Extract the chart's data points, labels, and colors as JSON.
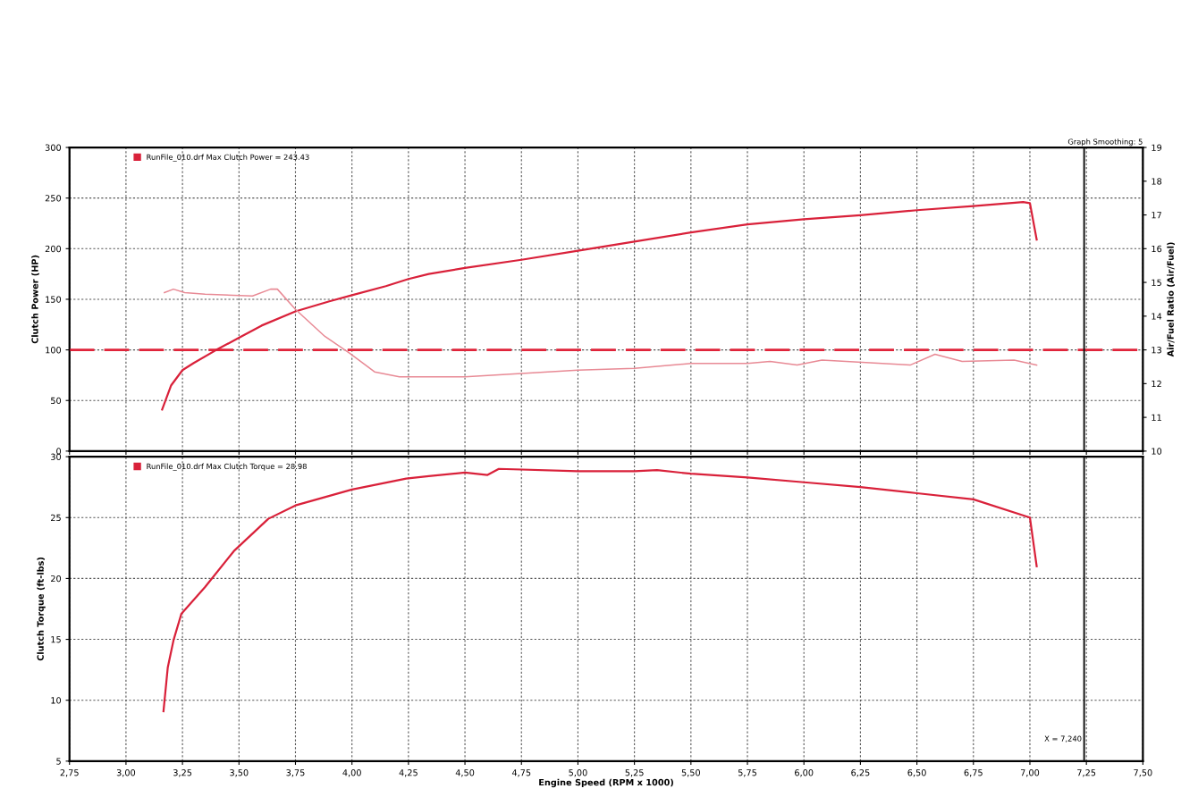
{
  "chart_data": [
    {
      "type": "line",
      "ylabel": "Clutch Power (HP)",
      "y2label": "Air/Fuel Ratio (Air/Fuel)",
      "annotations": [
        "Graph Smoothing: 5"
      ],
      "xlim": [
        2.75,
        7.5
      ],
      "xticks": [
        2.75,
        3.0,
        3.25,
        3.5,
        3.75,
        4.0,
        4.25,
        4.5,
        4.75,
        5.0,
        5.25,
        5.5,
        5.75,
        6.0,
        6.25,
        6.5,
        6.75,
        7.0,
        7.25,
        7.5
      ],
      "ylim": [
        0,
        300
      ],
      "yticks": [
        0,
        50,
        100,
        150,
        200,
        250,
        300
      ],
      "y2lim": [
        10,
        19
      ],
      "y2ticks": [
        10,
        11,
        12,
        13,
        14,
        15,
        16,
        17,
        18,
        19
      ],
      "tick_labels": "y",
      "grid": true,
      "legend": "top left",
      "ref_lines": [
        {
          "axis": "y",
          "value": 100,
          "color": "#e0243a",
          "line_style": "dashed"
        },
        {
          "axis": "x",
          "value": 7.24,
          "color": "#111111",
          "line_style": "solid"
        }
      ],
      "series": [
        {
          "name": "RunFile_010.drf Max Clutch Power = 243.43",
          "color": "#d9213a",
          "x": [
            3.16,
            3.2,
            3.25,
            3.3,
            3.4,
            3.5,
            3.6,
            3.75,
            3.9,
            4.0,
            4.15,
            4.25,
            4.34,
            4.5,
            4.75,
            5.0,
            5.25,
            5.5,
            5.75,
            6.0,
            6.25,
            6.5,
            6.75,
            6.97,
            7.0,
            7.03
          ],
          "values": [
            41,
            65,
            80,
            87,
            100,
            112,
            124,
            138,
            148,
            154,
            163,
            170,
            175,
            181,
            189,
            198,
            207,
            216,
            224,
            229,
            233,
            238,
            242,
            246,
            245,
            209
          ]
        },
        {
          "color": "#e88a95",
          "axis": "y2",
          "x": [
            3.17,
            3.21,
            3.26,
            3.35,
            3.56,
            3.64,
            3.67,
            3.75,
            3.88,
            3.99,
            4.1,
            4.21,
            4.34,
            4.5,
            4.75,
            5.0,
            5.25,
            5.5,
            5.75,
            5.85,
            5.97,
            6.08,
            6.47,
            6.58,
            6.7,
            6.93,
            7.03
          ],
          "values": [
            14.7,
            14.8,
            14.7,
            14.65,
            14.6,
            14.8,
            14.8,
            14.2,
            13.4,
            12.9,
            12.35,
            12.2,
            12.2,
            12.2,
            12.3,
            12.4,
            12.45,
            12.6,
            12.6,
            12.66,
            12.55,
            12.7,
            12.55,
            12.87,
            12.66,
            12.7,
            12.55
          ]
        }
      ]
    },
    {
      "type": "line",
      "xlabel": "Engine Speed (RPM x 1000)",
      "ylabel": "Clutch Torque (ft-lbs)",
      "xlim": [
        2.75,
        7.5
      ],
      "xticks": [
        {
          "value": 2.75,
          "label": "2,75"
        },
        {
          "value": 3.0,
          "label": "3,00"
        },
        {
          "value": 3.25,
          "label": "3,25"
        },
        {
          "value": 3.5,
          "label": "3,50"
        },
        {
          "value": 3.75,
          "label": "3,75"
        },
        {
          "value": 4.0,
          "label": "4,00"
        },
        {
          "value": 4.25,
          "label": "4,25"
        },
        {
          "value": 4.5,
          "label": "4,50"
        },
        {
          "value": 4.75,
          "label": "4,75"
        },
        {
          "value": 5.0,
          "label": "5,00"
        },
        {
          "value": 5.25,
          "label": "5,25"
        },
        {
          "value": 5.5,
          "label": "5,50"
        },
        {
          "value": 5.75,
          "label": "5,75"
        },
        {
          "value": 6.0,
          "label": "6,00"
        },
        {
          "value": 6.25,
          "label": "6,25"
        },
        {
          "value": 6.5,
          "label": "6,50"
        },
        {
          "value": 6.75,
          "label": "6,75"
        },
        {
          "value": 7.0,
          "label": "7,00"
        },
        {
          "value": 7.25,
          "label": "7,25"
        },
        {
          "value": 7.5,
          "label": "7,50"
        }
      ],
      "ylim": [
        5,
        30
      ],
      "yticks": [
        5,
        10,
        15,
        20,
        25,
        30
      ],
      "grid": true,
      "legend": "top left",
      "ref_lines": [
        {
          "axis": "x",
          "value": 7.24,
          "color": "#111111",
          "line_style": "solid",
          "label": "X = 7,240"
        }
      ],
      "series": [
        {
          "name": "RunFile_010.drf Max Clutch Torque = 28.98",
          "color": "#d9213a",
          "x": [
            3.166,
            3.185,
            3.21,
            3.245,
            3.35,
            3.48,
            3.63,
            3.75,
            4.0,
            4.24,
            4.34,
            4.5,
            4.6,
            4.65,
            5.0,
            5.25,
            5.35,
            5.5,
            5.75,
            6.0,
            6.25,
            6.5,
            6.75,
            7.0,
            7.03
          ],
          "values": [
            9.1,
            12.7,
            14.9,
            17.1,
            19.3,
            22.3,
            24.9,
            26.0,
            27.3,
            28.2,
            28.4,
            28.7,
            28.5,
            29.0,
            28.8,
            28.8,
            28.9,
            28.6,
            28.3,
            27.9,
            27.5,
            27.0,
            26.5,
            25.0,
            21.0
          ]
        }
      ]
    }
  ]
}
